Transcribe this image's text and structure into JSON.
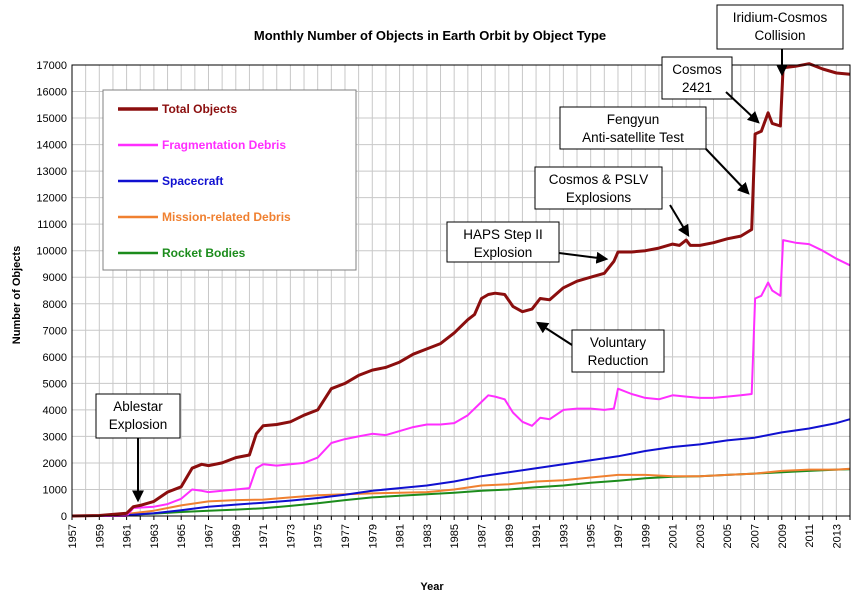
{
  "chart_data": {
    "type": "line",
    "title": "Monthly Number of Objects in Earth Orbit by Object Type",
    "xlabel": "Year",
    "ylabel": "Number of Objects",
    "xlim": [
      1957,
      2014
    ],
    "ylim": [
      0,
      17000
    ],
    "yticks": [
      0,
      1000,
      2000,
      3000,
      4000,
      5000,
      6000,
      7000,
      8000,
      9000,
      10000,
      11000,
      12000,
      13000,
      14000,
      15000,
      16000,
      17000
    ],
    "xticks": [
      1957,
      1959,
      1961,
      1963,
      1965,
      1967,
      1969,
      1971,
      1973,
      1975,
      1977,
      1979,
      1981,
      1983,
      1985,
      1987,
      1989,
      1991,
      1993,
      1995,
      1997,
      1999,
      2001,
      2003,
      2005,
      2007,
      2009,
      2011,
      2013
    ],
    "grid": true,
    "legend_position": "top-left",
    "series": [
      {
        "name": "Total Objects",
        "color": "#8b0e0e",
        "points": [
          [
            1957,
            0
          ],
          [
            1959,
            20
          ],
          [
            1961,
            100
          ],
          [
            1961.5,
            350
          ],
          [
            1962,
            400
          ],
          [
            1963,
            550
          ],
          [
            1964,
            900
          ],
          [
            1965,
            1100
          ],
          [
            1965.8,
            1800
          ],
          [
            1966.5,
            1950
          ],
          [
            1967,
            1900
          ],
          [
            1968,
            2000
          ],
          [
            1969,
            2200
          ],
          [
            1970,
            2300
          ],
          [
            1970.5,
            3100
          ],
          [
            1971,
            3400
          ],
          [
            1972,
            3450
          ],
          [
            1973,
            3550
          ],
          [
            1974,
            3800
          ],
          [
            1975,
            4000
          ],
          [
            1976,
            4800
          ],
          [
            1977,
            5000
          ],
          [
            1978,
            5300
          ],
          [
            1979,
            5500
          ],
          [
            1980,
            5600
          ],
          [
            1981,
            5800
          ],
          [
            1982,
            6100
          ],
          [
            1983,
            6300
          ],
          [
            1984,
            6500
          ],
          [
            1985,
            6900
          ],
          [
            1986,
            7400
          ],
          [
            1986.5,
            7600
          ],
          [
            1987,
            8200
          ],
          [
            1987.5,
            8350
          ],
          [
            1988,
            8400
          ],
          [
            1988.7,
            8350
          ],
          [
            1989.3,
            7900
          ],
          [
            1990,
            7700
          ],
          [
            1990.7,
            7800
          ],
          [
            1991.3,
            8200
          ],
          [
            1992,
            8150
          ],
          [
            1993,
            8600
          ],
          [
            1994,
            8850
          ],
          [
            1995,
            9000
          ],
          [
            1996,
            9150
          ],
          [
            1996.7,
            9600
          ],
          [
            1997,
            9950
          ],
          [
            1998,
            9950
          ],
          [
            1999,
            10000
          ],
          [
            2000,
            10100
          ],
          [
            2001,
            10250
          ],
          [
            2001.5,
            10200
          ],
          [
            2002,
            10400
          ],
          [
            2002.3,
            10200
          ],
          [
            2003,
            10200
          ],
          [
            2004,
            10300
          ],
          [
            2005,
            10450
          ],
          [
            2006,
            10550
          ],
          [
            2006.8,
            10800
          ],
          [
            2007.05,
            14400
          ],
          [
            2007.5,
            14500
          ],
          [
            2008,
            15200
          ],
          [
            2008.3,
            14800
          ],
          [
            2008.9,
            14700
          ],
          [
            2009.1,
            16900
          ],
          [
            2010,
            16950
          ],
          [
            2011,
            17050
          ],
          [
            2012,
            16850
          ],
          [
            2013,
            16700
          ],
          [
            2014,
            16650
          ]
        ]
      },
      {
        "name": "Fragmentation Debris",
        "color": "#ff2eff",
        "points": [
          [
            1957,
            0
          ],
          [
            1961,
            0
          ],
          [
            1961.5,
            300
          ],
          [
            1963,
            350
          ],
          [
            1964,
            450
          ],
          [
            1965,
            650
          ],
          [
            1965.8,
            1000
          ],
          [
            1966.5,
            950
          ],
          [
            1967,
            900
          ],
          [
            1968,
            950
          ],
          [
            1969,
            1000
          ],
          [
            1970,
            1050
          ],
          [
            1970.5,
            1800
          ],
          [
            1971,
            1950
          ],
          [
            1972,
            1900
          ],
          [
            1973,
            1950
          ],
          [
            1974,
            2000
          ],
          [
            1975,
            2200
          ],
          [
            1976,
            2750
          ],
          [
            1977,
            2900
          ],
          [
            1978,
            3000
          ],
          [
            1979,
            3100
          ],
          [
            1980,
            3050
          ],
          [
            1981,
            3200
          ],
          [
            1982,
            3350
          ],
          [
            1983,
            3450
          ],
          [
            1984,
            3450
          ],
          [
            1985,
            3500
          ],
          [
            1986,
            3800
          ],
          [
            1987,
            4300
          ],
          [
            1987.5,
            4550
          ],
          [
            1988,
            4500
          ],
          [
            1988.7,
            4400
          ],
          [
            1989.3,
            3900
          ],
          [
            1990,
            3550
          ],
          [
            1990.7,
            3400
          ],
          [
            1991.3,
            3700
          ],
          [
            1992,
            3650
          ],
          [
            1993,
            4000
          ],
          [
            1994,
            4050
          ],
          [
            1995,
            4050
          ],
          [
            1996,
            4000
          ],
          [
            1996.7,
            4050
          ],
          [
            1997,
            4800
          ],
          [
            1998,
            4600
          ],
          [
            1999,
            4450
          ],
          [
            2000,
            4400
          ],
          [
            2001,
            4550
          ],
          [
            2002,
            4500
          ],
          [
            2003,
            4450
          ],
          [
            2004,
            4450
          ],
          [
            2005,
            4500
          ],
          [
            2006,
            4550
          ],
          [
            2006.8,
            4600
          ],
          [
            2007.05,
            8200
          ],
          [
            2007.5,
            8300
          ],
          [
            2008,
            8800
          ],
          [
            2008.3,
            8500
          ],
          [
            2008.9,
            8300
          ],
          [
            2009.1,
            10400
          ],
          [
            2010,
            10300
          ],
          [
            2011,
            10250
          ],
          [
            2012,
            10000
          ],
          [
            2013,
            9700
          ],
          [
            2014,
            9450
          ]
        ]
      },
      {
        "name": "Spacecraft",
        "color": "#1010d0",
        "points": [
          [
            1957,
            0
          ],
          [
            1959,
            10
          ],
          [
            1961,
            30
          ],
          [
            1963,
            100
          ],
          [
            1965,
            220
          ],
          [
            1967,
            350
          ],
          [
            1969,
            430
          ],
          [
            1971,
            500
          ],
          [
            1973,
            580
          ],
          [
            1975,
            680
          ],
          [
            1977,
            800
          ],
          [
            1979,
            950
          ],
          [
            1981,
            1050
          ],
          [
            1983,
            1150
          ],
          [
            1985,
            1300
          ],
          [
            1987,
            1500
          ],
          [
            1989,
            1650
          ],
          [
            1991,
            1800
          ],
          [
            1993,
            1950
          ],
          [
            1995,
            2100
          ],
          [
            1997,
            2250
          ],
          [
            1999,
            2450
          ],
          [
            2001,
            2600
          ],
          [
            2003,
            2700
          ],
          [
            2005,
            2850
          ],
          [
            2007,
            2950
          ],
          [
            2009,
            3150
          ],
          [
            2011,
            3300
          ],
          [
            2013,
            3500
          ],
          [
            2014,
            3650
          ]
        ]
      },
      {
        "name": "Mission-related Debris",
        "color": "#f08030",
        "points": [
          [
            1957,
            0
          ],
          [
            1959,
            10
          ],
          [
            1961,
            80
          ],
          [
            1963,
            200
          ],
          [
            1965,
            400
          ],
          [
            1967,
            550
          ],
          [
            1969,
            600
          ],
          [
            1971,
            620
          ],
          [
            1973,
            700
          ],
          [
            1975,
            780
          ],
          [
            1977,
            820
          ],
          [
            1979,
            850
          ],
          [
            1981,
            880
          ],
          [
            1983,
            900
          ],
          [
            1985,
            1000
          ],
          [
            1987,
            1150
          ],
          [
            1989,
            1200
          ],
          [
            1991,
            1300
          ],
          [
            1993,
            1350
          ],
          [
            1995,
            1450
          ],
          [
            1997,
            1550
          ],
          [
            1999,
            1550
          ],
          [
            2001,
            1500
          ],
          [
            2003,
            1500
          ],
          [
            2005,
            1550
          ],
          [
            2007,
            1600
          ],
          [
            2009,
            1700
          ],
          [
            2011,
            1750
          ],
          [
            2013,
            1750
          ],
          [
            2014,
            1780
          ]
        ]
      },
      {
        "name": "Rocket Bodies",
        "color": "#1c8c1c",
        "points": [
          [
            1957,
            0
          ],
          [
            1959,
            10
          ],
          [
            1961,
            40
          ],
          [
            1963,
            90
          ],
          [
            1965,
            150
          ],
          [
            1967,
            200
          ],
          [
            1969,
            240
          ],
          [
            1971,
            290
          ],
          [
            1973,
            380
          ],
          [
            1975,
            480
          ],
          [
            1977,
            600
          ],
          [
            1979,
            700
          ],
          [
            1981,
            760
          ],
          [
            1983,
            820
          ],
          [
            1985,
            880
          ],
          [
            1987,
            950
          ],
          [
            1989,
            1000
          ],
          [
            1991,
            1080
          ],
          [
            1993,
            1150
          ],
          [
            1995,
            1250
          ],
          [
            1997,
            1330
          ],
          [
            1999,
            1420
          ],
          [
            2001,
            1480
          ],
          [
            2003,
            1500
          ],
          [
            2005,
            1550
          ],
          [
            2007,
            1600
          ],
          [
            2009,
            1650
          ],
          [
            2011,
            1700
          ],
          [
            2013,
            1750
          ],
          [
            2014,
            1760
          ]
        ]
      }
    ],
    "annotations": [
      {
        "lines": [
          "Ablestar",
          "Explosion"
        ]
      },
      {
        "lines": [
          "HAPS Step II",
          "Explosion"
        ]
      },
      {
        "lines": [
          "Voluntary",
          "Reduction"
        ]
      },
      {
        "lines": [
          "Cosmos & PSLV",
          "Explosions"
        ]
      },
      {
        "lines": [
          "Fengyun",
          "Anti-satellite Test"
        ]
      },
      {
        "lines": [
          "Cosmos",
          "2421"
        ]
      },
      {
        "lines": [
          "Iridium-Cosmos",
          "Collision"
        ]
      }
    ]
  }
}
